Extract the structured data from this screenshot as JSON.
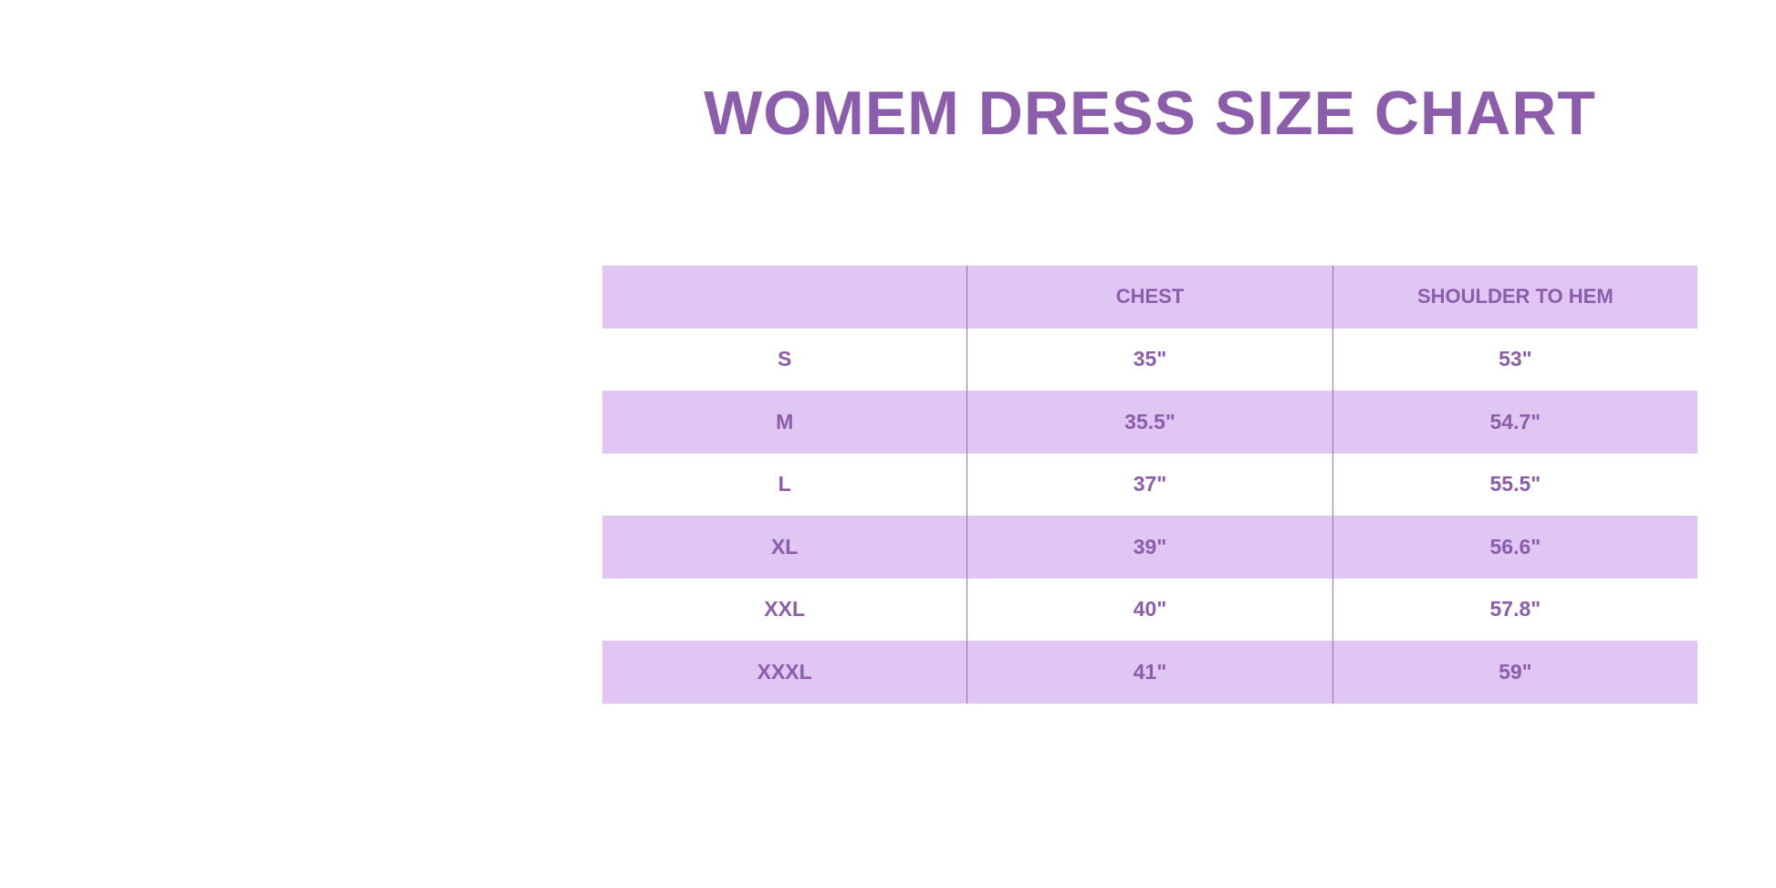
{
  "title": "WOMEM DRESS SIZE CHART",
  "colors": {
    "text": "#8b5dab",
    "row_shade": "#e0c6f3",
    "background": "#ffffff"
  },
  "table": {
    "headers": [
      "",
      "CHEST",
      "SHOULDER TO HEM"
    ],
    "rows": [
      [
        "S",
        "35\"",
        "53\""
      ],
      [
        "M",
        "35.5\"",
        "54.7\""
      ],
      [
        "L",
        "37\"",
        "55.5\""
      ],
      [
        "XL",
        "39\"",
        "56.6\""
      ],
      [
        "XXL",
        "40\"",
        "57.8\""
      ],
      [
        "XXXL",
        "41\"",
        "59\""
      ]
    ]
  }
}
